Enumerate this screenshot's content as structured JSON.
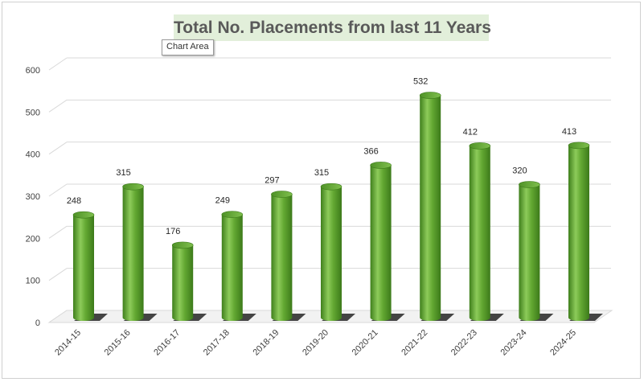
{
  "tooltip": "Chart Area",
  "chart_data": {
    "type": "bar",
    "title": "Total No. Placements from last 11 Years",
    "categories": [
      "2014-15",
      "2015-16",
      "2016-17",
      "2017-18",
      "2018-19",
      "2019-20",
      "2020-21",
      "2021-22",
      "2022-23",
      "2023-24",
      "2024-25"
    ],
    "values": [
      248,
      315,
      176,
      249,
      297,
      315,
      366,
      532,
      412,
      320,
      413
    ],
    "ylim": [
      0,
      600
    ],
    "yticks": [
      "0",
      "100",
      "200",
      "300",
      "400",
      "500",
      "600"
    ],
    "grid": true,
    "legend": "none",
    "bar_color": "#5aa02c",
    "title_bg": "#e2efda"
  }
}
